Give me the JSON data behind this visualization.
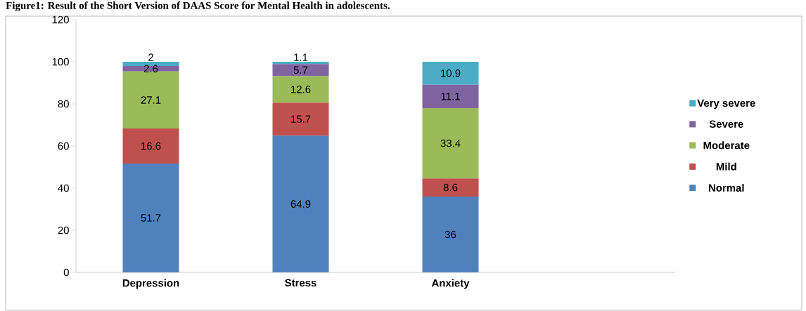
{
  "chart_data": {
    "type": "bar",
    "stacked": true,
    "title": "Figure1: Result of the Short Version of DAAS Score for Mental Health in adolescents.",
    "categories": [
      "Depression",
      "Stress",
      "Anxiety",
      null
    ],
    "series": [
      {
        "name": "Normal",
        "color": "#4f81bd",
        "values": [
          51.7,
          64.9,
          36,
          null
        ]
      },
      {
        "name": "Mild",
        "color": "#c0504d",
        "values": [
          16.6,
          15.7,
          8.6,
          null
        ]
      },
      {
        "name": "Moderate",
        "color": "#9bbb59",
        "values": [
          27.1,
          12.6,
          33.4,
          null
        ]
      },
      {
        "name": "Severe",
        "color": "#8064a2",
        "values": [
          2.6,
          5.7,
          11.1,
          null
        ]
      },
      {
        "name": "Very severe",
        "color": "#4bacc6",
        "values": [
          2,
          1.1,
          10.9,
          null
        ]
      }
    ],
    "ylim": [
      0,
      120
    ],
    "yticks": [
      0,
      20,
      40,
      60,
      80,
      100,
      120
    ],
    "data_labels": true,
    "legend": "right",
    "grid": false
  }
}
